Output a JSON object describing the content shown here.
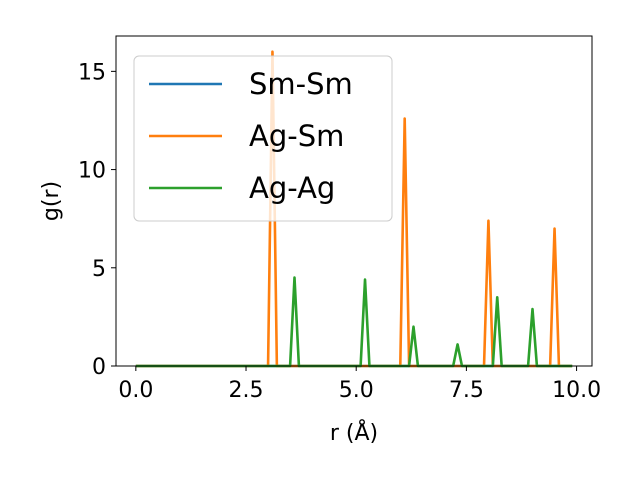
{
  "chart_data": {
    "type": "line",
    "title": "",
    "xlabel": "r (Å)",
    "ylabel": "g(r)",
    "xlim": [
      -0.45,
      10.35
    ],
    "ylim": [
      0,
      16.8
    ],
    "xticks": [
      0.0,
      2.5,
      5.0,
      7.5,
      10.0
    ],
    "xtick_labels": [
      "0.0",
      "2.5",
      "5.0",
      "7.5",
      "10.0"
    ],
    "yticks": [
      0,
      5,
      10,
      15
    ],
    "ytick_labels": [
      "0",
      "5",
      "10",
      "15"
    ],
    "grid": false,
    "legend_position": "top-left",
    "series": [
      {
        "name": "Sm-Sm",
        "color": "#1f77b4",
        "x": [
          0.0,
          9.9
        ],
        "y": [
          0,
          0
        ]
      },
      {
        "name": "Ag-Sm",
        "color": "#ff7f0e",
        "x": [
          0.0,
          3.0,
          3.1,
          3.2,
          6.0,
          6.1,
          6.2,
          7.9,
          8.0,
          8.1,
          9.4,
          9.5,
          9.6,
          9.9
        ],
        "y": [
          0,
          0,
          16.0,
          0,
          0,
          12.6,
          0,
          0,
          7.4,
          0,
          0,
          7.0,
          0,
          0
        ]
      },
      {
        "name": "Ag-Ag",
        "color": "#2ca02c",
        "x": [
          0.0,
          3.5,
          3.6,
          3.7,
          5.1,
          5.2,
          5.3,
          6.2,
          6.3,
          6.4,
          7.2,
          7.3,
          7.4,
          8.1,
          8.2,
          8.3,
          8.9,
          9.0,
          9.1,
          9.9
        ],
        "y": [
          0,
          0,
          4.5,
          0,
          0,
          4.4,
          0,
          0,
          2.0,
          0,
          0,
          1.1,
          0,
          0,
          3.5,
          0,
          0,
          2.9,
          0,
          0
        ]
      }
    ]
  }
}
